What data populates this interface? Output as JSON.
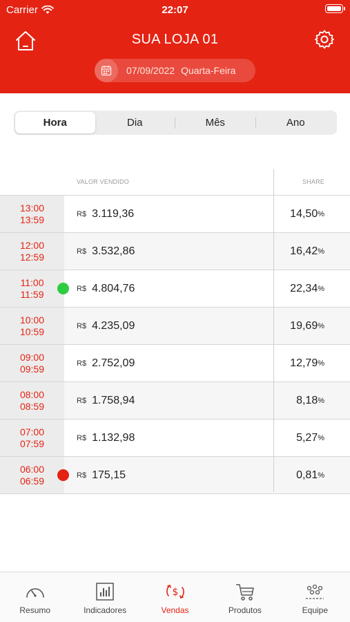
{
  "status_bar": {
    "carrier": "Carrier",
    "time": "22:07"
  },
  "header": {
    "store_name": "SUA LOJA 01",
    "date": "07/09/2022",
    "weekday": "Quarta-Feira"
  },
  "period_tabs": [
    {
      "label": "Hora",
      "active": true
    },
    {
      "label": "Dia",
      "active": false
    },
    {
      "label": "Mês",
      "active": false
    },
    {
      "label": "Ano",
      "active": false
    }
  ],
  "table": {
    "columns": {
      "value": "VALOR VENDIDO",
      "share": "SHARE"
    },
    "currency": "R$",
    "pct_symbol": "%",
    "rows": [
      {
        "start": "13:00",
        "end": "13:59",
        "value": "3.119,36",
        "share": "14,50",
        "face": ""
      },
      {
        "start": "12:00",
        "end": "12:59",
        "value": "3.532,86",
        "share": "16,42",
        "face": ""
      },
      {
        "start": "11:00",
        "end": "11:59",
        "value": "4.804,76",
        "share": "22,34",
        "face": "happy"
      },
      {
        "start": "10:00",
        "end": "10:59",
        "value": "4.235,09",
        "share": "19,69",
        "face": ""
      },
      {
        "start": "09:00",
        "end": "09:59",
        "value": "2.752,09",
        "share": "12,79",
        "face": ""
      },
      {
        "start": "08:00",
        "end": "08:59",
        "value": "1.758,94",
        "share": "8,18",
        "face": ""
      },
      {
        "start": "07:00",
        "end": "07:59",
        "value": "1.132,98",
        "share": "5,27",
        "face": ""
      },
      {
        "start": "06:00",
        "end": "06:59",
        "value": "175,15",
        "share": "0,81",
        "face": "sad"
      }
    ]
  },
  "tab_bar": [
    {
      "label": "Resumo",
      "icon": "gauge-icon",
      "active": false
    },
    {
      "label": "Indicadores",
      "icon": "bar-chart-icon",
      "active": false
    },
    {
      "label": "Vendas",
      "icon": "sales-cycle-icon",
      "active": true
    },
    {
      "label": "Produtos",
      "icon": "cart-icon",
      "active": false
    },
    {
      "label": "Equipe",
      "icon": "team-icon",
      "active": false
    }
  ],
  "colors": {
    "brand_red": "#e42313",
    "happy_green": "#2ecc40"
  }
}
